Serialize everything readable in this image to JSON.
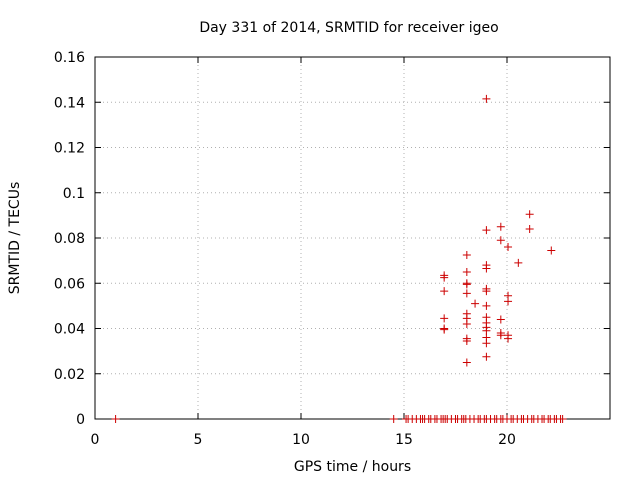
{
  "chart_data": {
    "type": "scatter",
    "title": "Day 331 of 2014, SRMTID for receiver igeo",
    "xlabel": "GPS time / hours",
    "ylabel": "SRMTID / TECUs",
    "xlim": [
      0,
      25
    ],
    "ylim": [
      0,
      0.16
    ],
    "xticks": [
      0,
      5,
      10,
      15,
      20
    ],
    "xtick_labels": [
      "0",
      "5",
      "10",
      "15",
      "20"
    ],
    "yticks": [
      0,
      0.02,
      0.04,
      0.06,
      0.08,
      0.1,
      0.12,
      0.14,
      0.16
    ],
    "ytick_labels": [
      "0",
      "0.02",
      "0.04",
      "0.06",
      "0.08",
      "0.1",
      "0.12",
      "0.14",
      "0.16"
    ],
    "grid": true,
    "marker": "+",
    "color": "#cc0000",
    "series": [
      {
        "name": "igeo",
        "points": [
          [
            1.0,
            0
          ],
          [
            14.5,
            0
          ],
          [
            15.1,
            0
          ],
          [
            15.2,
            0
          ],
          [
            15.4,
            0
          ],
          [
            15.6,
            0
          ],
          [
            15.8,
            0
          ],
          [
            15.9,
            0
          ],
          [
            16.0,
            0
          ],
          [
            16.2,
            0
          ],
          [
            16.3,
            0
          ],
          [
            16.5,
            0
          ],
          [
            16.6,
            0
          ],
          [
            16.8,
            0
          ],
          [
            16.9,
            0
          ],
          [
            17.0,
            0
          ],
          [
            17.1,
            0
          ],
          [
            17.3,
            0
          ],
          [
            17.5,
            0
          ],
          [
            17.6,
            0
          ],
          [
            17.8,
            0
          ],
          [
            17.9,
            0
          ],
          [
            18.0,
            0
          ],
          [
            18.2,
            0
          ],
          [
            18.4,
            0
          ],
          [
            18.6,
            0
          ],
          [
            18.7,
            0
          ],
          [
            18.9,
            0
          ],
          [
            19.0,
            0
          ],
          [
            19.2,
            0
          ],
          [
            19.4,
            0
          ],
          [
            19.5,
            0
          ],
          [
            19.7,
            0
          ],
          [
            19.8,
            0
          ],
          [
            20.0,
            0
          ],
          [
            20.2,
            0
          ],
          [
            20.3,
            0
          ],
          [
            20.5,
            0
          ],
          [
            20.7,
            0
          ],
          [
            20.8,
            0
          ],
          [
            21.0,
            0
          ],
          [
            21.2,
            0
          ],
          [
            21.3,
            0
          ],
          [
            21.5,
            0
          ],
          [
            21.7,
            0
          ],
          [
            21.8,
            0
          ],
          [
            22.0,
            0
          ],
          [
            22.1,
            0
          ],
          [
            22.3,
            0
          ],
          [
            22.4,
            0
          ],
          [
            22.6,
            0
          ],
          [
            22.7,
            0
          ],
          [
            16.95,
            0.0635
          ],
          [
            16.95,
            0.0625
          ],
          [
            16.95,
            0.0565
          ],
          [
            16.95,
            0.0445
          ],
          [
            16.95,
            0.04
          ],
          [
            16.95,
            0.0395
          ],
          [
            18.05,
            0.0725
          ],
          [
            18.05,
            0.065
          ],
          [
            18.05,
            0.06
          ],
          [
            18.05,
            0.0595
          ],
          [
            18.05,
            0.0555
          ],
          [
            18.05,
            0.0465
          ],
          [
            18.05,
            0.0445
          ],
          [
            18.05,
            0.042
          ],
          [
            18.05,
            0.0355
          ],
          [
            18.05,
            0.0345
          ],
          [
            18.05,
            0.025
          ],
          [
            18.45,
            0.051
          ],
          [
            19.0,
            0.1415
          ],
          [
            19.0,
            0.0835
          ],
          [
            19.0,
            0.068
          ],
          [
            19.0,
            0.0665
          ],
          [
            19.0,
            0.0575
          ],
          [
            19.0,
            0.0565
          ],
          [
            19.0,
            0.05
          ],
          [
            19.0,
            0.045
          ],
          [
            19.0,
            0.0425
          ],
          [
            19.0,
            0.0405
          ],
          [
            19.0,
            0.039
          ],
          [
            19.0,
            0.036
          ],
          [
            19.0,
            0.0335
          ],
          [
            19.0,
            0.0275
          ],
          [
            19.7,
            0.085
          ],
          [
            19.7,
            0.079
          ],
          [
            19.7,
            0.044
          ],
          [
            19.7,
            0.038
          ],
          [
            19.7,
            0.037
          ],
          [
            20.05,
            0.076
          ],
          [
            20.05,
            0.0545
          ],
          [
            20.05,
            0.052
          ],
          [
            20.05,
            0.037
          ],
          [
            20.05,
            0.0355
          ],
          [
            20.55,
            0.069
          ],
          [
            21.1,
            0.0905
          ],
          [
            21.1,
            0.084
          ],
          [
            22.15,
            0.0745
          ]
        ]
      }
    ]
  }
}
